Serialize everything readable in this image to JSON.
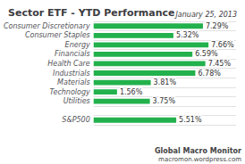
{
  "chart_data": {
    "type": "bar",
    "orientation": "horizontal",
    "title": "Sector ETF - YTD Performance",
    "annotations": [
      "January 25, 2013",
      "Global Macro Monitor",
      "macromon.wordpress.com"
    ],
    "categories": [
      "S&P500",
      null,
      "Utilities",
      "Technology",
      "Materials",
      "Industrials",
      "Health Care",
      "Financials",
      "Energy",
      "Consumer Staples",
      "Consumer Discretionary"
    ],
    "values": [
      5.51,
      null,
      3.75,
      1.56,
      3.81,
      6.78,
      7.45,
      6.59,
      7.66,
      5.32,
      7.29
    ],
    "value_labels": [
      "5.51%",
      null,
      "3.75%",
      "1.56%",
      "3.81%",
      "6.78%",
      "7.45%",
      "6.59%",
      "7.66%",
      "5.32%",
      "7.29%"
    ],
    "data_labels": true,
    "color": "#22b14c",
    "xlim": [
      0,
      9.5
    ],
    "tick_labels": "y",
    "grid": true
  }
}
